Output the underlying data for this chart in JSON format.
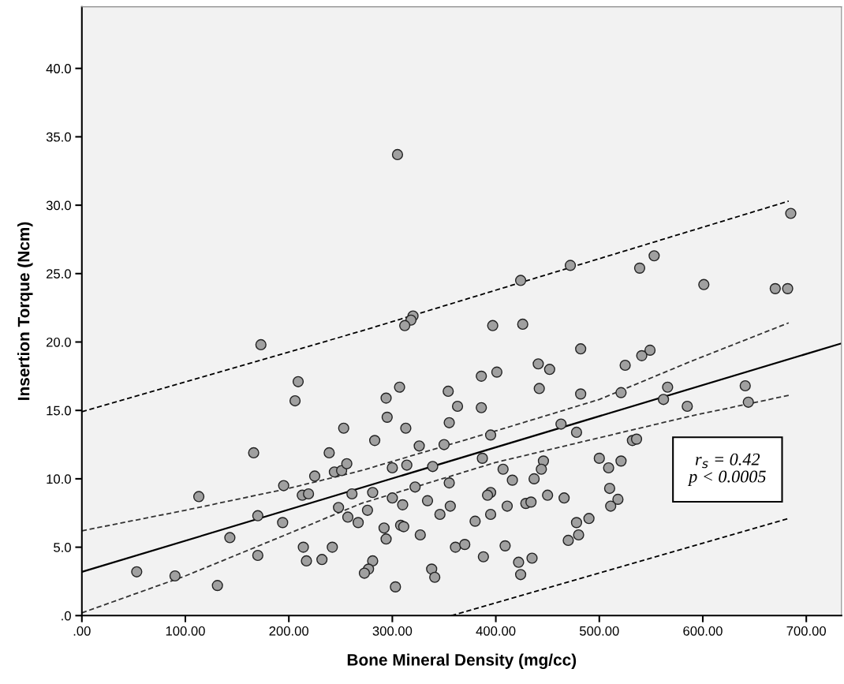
{
  "chart_data": {
    "type": "scatter",
    "xlabel": "Bone Mineral Density (mg/cc)",
    "ylabel": "Insertion Torque (Ncm)",
    "xlim": [
      0,
      734
    ],
    "ylim": [
      0,
      44.5
    ],
    "xticks": [
      {
        "value": 0,
        "label": ".00"
      },
      {
        "value": 100,
        "label": "100.00"
      },
      {
        "value": 200,
        "label": "200.00"
      },
      {
        "value": 300,
        "label": "300.00"
      },
      {
        "value": 400,
        "label": "400.00"
      },
      {
        "value": 500,
        "label": "500.00"
      },
      {
        "value": 600,
        "label": "600.00"
      },
      {
        "value": 700,
        "label": "700.00"
      }
    ],
    "yticks": [
      {
        "value": 0,
        "label": ".0"
      },
      {
        "value": 5,
        "label": "5.0"
      },
      {
        "value": 10,
        "label": "10.0"
      },
      {
        "value": 15,
        "label": "15.0"
      },
      {
        "value": 20,
        "label": "20.0"
      },
      {
        "value": 25,
        "label": "25.0"
      },
      {
        "value": 30,
        "label": "30.0"
      },
      {
        "value": 35,
        "label": "35.0"
      },
      {
        "value": 40,
        "label": "40.0"
      }
    ],
    "grid": false,
    "annotations": [
      "r$_{s}$ = 0.42\np < 0.0005"
    ],
    "series": [
      {
        "color": "#a0a0a0",
        "marker": "circle",
        "x": [
          53,
          90,
          131,
          113,
          143,
          173,
          166,
          170,
          170,
          209,
          206,
          195,
          194,
          213,
          219,
          225,
          214,
          217,
          232,
          239,
          244,
          251,
          256,
          253,
          242,
          248,
          257,
          267,
          261,
          276,
          281,
          283,
          281,
          277,
          273,
          320,
          318,
          312,
          397,
          426,
          482,
          549,
          541,
          525,
          441,
          452,
          386,
          401,
          442,
          482,
          521,
          566,
          562,
          585,
          307,
          294,
          295,
          354,
          363,
          386,
          355,
          313,
          463,
          478,
          532,
          536,
          326,
          350,
          395,
          387,
          300,
          314,
          339,
          300,
          322,
          355,
          310,
          334,
          356,
          346,
          292,
          308,
          311,
          294,
          327,
          407,
          416,
          446,
          444,
          437,
          395,
          392,
          411,
          429,
          434,
          450,
          466,
          395,
          380,
          361,
          370,
          388,
          409,
          422,
          424,
          435,
          338,
          341,
          303,
          500,
          509,
          521,
          510,
          518,
          511,
          490,
          478,
          480,
          470,
          305,
          424,
          472,
          539,
          553,
          601,
          670,
          682,
          685,
          641,
          644
        ],
        "values": [
          3.2,
          2.9,
          2.2,
          8.7,
          5.7,
          19.8,
          11.9,
          7.3,
          4.4,
          17.1,
          15.7,
          9.5,
          6.8,
          8.8,
          8.9,
          10.2,
          5.0,
          4.0,
          4.1,
          11.9,
          10.5,
          10.6,
          11.1,
          13.7,
          5.0,
          7.9,
          7.2,
          6.8,
          8.9,
          7.7,
          9.0,
          12.8,
          4.0,
          3.4,
          3.1,
          21.9,
          21.6,
          21.2,
          21.2,
          21.3,
          19.5,
          19.4,
          19.0,
          18.3,
          18.4,
          18.0,
          17.5,
          17.8,
          16.6,
          16.2,
          16.3,
          16.7,
          15.8,
          15.3,
          16.7,
          15.9,
          14.5,
          16.4,
          15.3,
          15.2,
          14.1,
          13.7,
          14.0,
          13.4,
          12.8,
          12.9,
          12.4,
          12.5,
          13.2,
          11.5,
          10.8,
          11.0,
          10.9,
          8.6,
          9.4,
          9.7,
          8.1,
          8.4,
          8.0,
          7.4,
          6.4,
          6.6,
          6.5,
          5.6,
          5.9,
          10.7,
          9.9,
          11.3,
          10.7,
          10.0,
          9.0,
          8.8,
          8.0,
          8.2,
          8.3,
          8.8,
          8.6,
          7.4,
          6.9,
          5.0,
          5.2,
          4.3,
          5.1,
          3.9,
          3.0,
          4.2,
          3.4,
          2.8,
          2.1,
          11.5,
          10.8,
          11.3,
          9.3,
          8.5,
          8.0,
          7.1,
          6.8,
          5.9,
          5.5,
          33.7,
          24.5,
          25.6,
          25.4,
          26.3,
          24.2,
          23.9,
          23.9,
          29.4,
          16.8,
          15.6
        ]
      },
      {
        "type": "line",
        "color": "#000000",
        "line_style": "solid",
        "x": [
          0,
          734
        ],
        "values": [
          3.2,
          19.9
        ]
      },
      {
        "type": "line",
        "color": "#333333",
        "line_style": "dashed",
        "x": [
          0,
          100,
          200,
          270,
          400,
          500,
          589,
          683
        ],
        "values": [
          6.2,
          7.7,
          9.3,
          10.6,
          13.5,
          15.8,
          18.6,
          21.4
        ]
      },
      {
        "type": "line",
        "color": "#333333",
        "line_style": "dashed",
        "x": [
          0,
          100,
          200,
          270,
          400,
          500,
          589,
          683
        ],
        "values": [
          0.2,
          2.9,
          6.0,
          8.2,
          11.2,
          13.0,
          14.6,
          16.1
        ]
      },
      {
        "type": "line",
        "color": "#000000",
        "line_style": "dashed",
        "x": [
          0,
          270,
          683
        ],
        "values": [
          14.9,
          20.8,
          30.3
        ]
      },
      {
        "type": "line",
        "color": "#000000",
        "line_style": "dashed",
        "x": [
          357,
          683
        ],
        "values": [
          0,
          7.1
        ]
      }
    ]
  }
}
